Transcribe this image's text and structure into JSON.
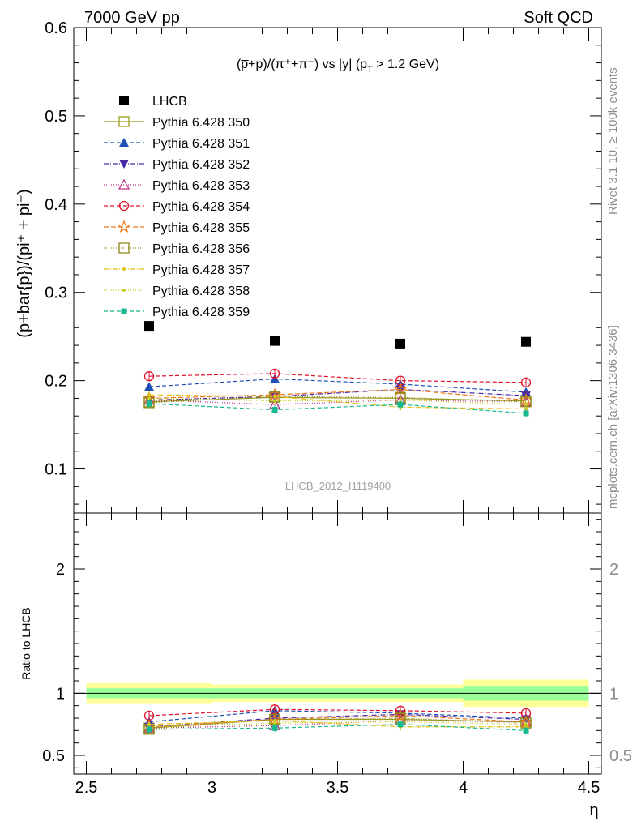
{
  "header": {
    "left": "7000 GeV pp",
    "right": "Soft QCD"
  },
  "side_labels": {
    "rivet": "Rivet 3.1.10, ≥ 100k events",
    "mcplots": "mcplots.cern.ch [arXiv:1306.3436]"
  },
  "colors": {
    "data": "#000000",
    "band_inner": "#99ff99",
    "band_outer": "#ffff99"
  },
  "chart_data": [
    {
      "type": "scatter",
      "title_parts": {
        "main": "(p̅+p)/(π⁺+π⁻) vs |y| (p",
        "sub": "T",
        "tail": " > 1.2 GeV)"
      },
      "ylabel": "(p+bar{p})/(pi⁺ + pi⁻)",
      "ylim": [
        0.05,
        0.6
      ],
      "xlim": [
        2.45,
        4.55
      ],
      "yticks": [
        0.1,
        0.2,
        0.3,
        0.4,
        0.5,
        0.6
      ],
      "ytick_labels": [
        "0.1",
        "0.2",
        "0.3",
        "0.4",
        "0.5",
        "0.6"
      ],
      "watermark": "LHCB_2012_I1119400",
      "x": [
        2.75,
        3.25,
        3.75,
        4.25
      ],
      "series": [
        {
          "name": "LHCB",
          "marker": "square-filled",
          "color": "#000000",
          "dash": "",
          "values": [
            0.262,
            0.245,
            0.242,
            0.244
          ]
        },
        {
          "name": "Pythia 6.428 350",
          "marker": "square-open",
          "color": "#9a9a1e",
          "dash": "",
          "values": [
            0.176,
            0.181,
            0.18,
            0.177
          ]
        },
        {
          "name": "Pythia 6.428 351",
          "marker": "triangle-up-filled",
          "color": "#1f4fb4",
          "dash": "5,3",
          "values": [
            0.193,
            0.202,
            0.196,
            0.187
          ]
        },
        {
          "name": "Pythia 6.428 352",
          "marker": "triangle-down-filled",
          "color": "#4b2aa5",
          "dash": "6,2,1,2",
          "values": [
            0.178,
            0.182,
            0.19,
            0.183
          ]
        },
        {
          "name": "Pythia 6.428 353",
          "marker": "triangle-up-open",
          "color": "#c0308c",
          "dash": "1,2",
          "values": [
            0.178,
            0.173,
            0.178,
            0.176
          ]
        },
        {
          "name": "Pythia 6.428 354",
          "marker": "circle-open",
          "color": "#e0102c",
          "dash": "5,3",
          "values": [
            0.205,
            0.208,
            0.2,
            0.198
          ]
        },
        {
          "name": "Pythia 6.428 355",
          "marker": "star-open",
          "color": "#f07a1c",
          "dash": "6,3",
          "values": [
            0.18,
            0.184,
            0.19,
            0.178
          ]
        },
        {
          "name": "Pythia 6.428 356",
          "marker": "square-open",
          "color": "#8a8a14",
          "dash": "1,2",
          "values": [
            0.175,
            0.182,
            0.181,
            0.176
          ]
        },
        {
          "name": "Pythia 6.428 357",
          "marker": "dot",
          "color": "#e0c010",
          "dash": "6,2,1,2",
          "values": [
            0.184,
            0.182,
            0.17,
            0.168
          ]
        },
        {
          "name": "Pythia 6.428 358",
          "marker": "dot",
          "color": "#c8d020",
          "dash": "1,2",
          "values": [
            0.18,
            0.177,
            0.178,
            0.173
          ]
        },
        {
          "name": "Pythia 6.428 359",
          "marker": "square-small",
          "color": "#18b890",
          "dash": "5,3",
          "values": [
            0.174,
            0.167,
            0.173,
            0.163
          ]
        }
      ]
    },
    {
      "type": "scatter",
      "ylabel": "Ratio to LHCB",
      "ylim": [
        0.35,
        2.45
      ],
      "xlim": [
        2.45,
        4.55
      ],
      "xlabel": "η",
      "xticks": [
        2.5,
        3,
        3.5,
        4,
        4.5
      ],
      "xtick_labels": [
        "2.5",
        "3",
        "3.5",
        "4",
        "4.5"
      ],
      "yticks": [
        0.5,
        1,
        2
      ],
      "ytick_labels": [
        "0.5",
        "1",
        "2"
      ],
      "bands": [
        {
          "x0": 2.5,
          "x1": 3.0,
          "inner": [
            0.96,
            1.04
          ],
          "outer": [
            0.92,
            1.08
          ]
        },
        {
          "x0": 3.0,
          "x1": 3.5,
          "inner": [
            0.96,
            1.04
          ],
          "outer": [
            0.93,
            1.07
          ]
        },
        {
          "x0": 3.5,
          "x1": 4.0,
          "inner": [
            0.96,
            1.04
          ],
          "outer": [
            0.93,
            1.07
          ]
        },
        {
          "x0": 4.0,
          "x1": 4.5,
          "inner": [
            0.94,
            1.06
          ],
          "outer": [
            0.89,
            1.11
          ]
        }
      ],
      "x": [
        2.75,
        3.25,
        3.75,
        4.25
      ],
      "series": [
        {
          "name": "Pythia 6.428 350",
          "values": [
            0.72,
            0.79,
            0.79,
            0.77
          ]
        },
        {
          "name": "Pythia 6.428 351",
          "values": [
            0.77,
            0.86,
            0.84,
            0.8
          ]
        },
        {
          "name": "Pythia 6.428 352",
          "values": [
            0.73,
            0.8,
            0.83,
            0.79
          ]
        },
        {
          "name": "Pythia 6.428 353",
          "values": [
            0.72,
            0.74,
            0.78,
            0.77
          ]
        },
        {
          "name": "Pythia 6.428 354",
          "values": [
            0.82,
            0.87,
            0.86,
            0.84
          ]
        },
        {
          "name": "Pythia 6.428 355",
          "values": [
            0.73,
            0.79,
            0.82,
            0.77
          ]
        },
        {
          "name": "Pythia 6.428 356",
          "values": [
            0.71,
            0.79,
            0.8,
            0.76
          ]
        },
        {
          "name": "Pythia 6.428 357",
          "values": [
            0.75,
            0.78,
            0.73,
            0.73
          ]
        },
        {
          "name": "Pythia 6.428 358",
          "values": [
            0.73,
            0.76,
            0.77,
            0.75
          ]
        },
        {
          "name": "Pythia 6.428 359",
          "values": [
            0.71,
            0.72,
            0.75,
            0.7
          ]
        }
      ]
    }
  ]
}
